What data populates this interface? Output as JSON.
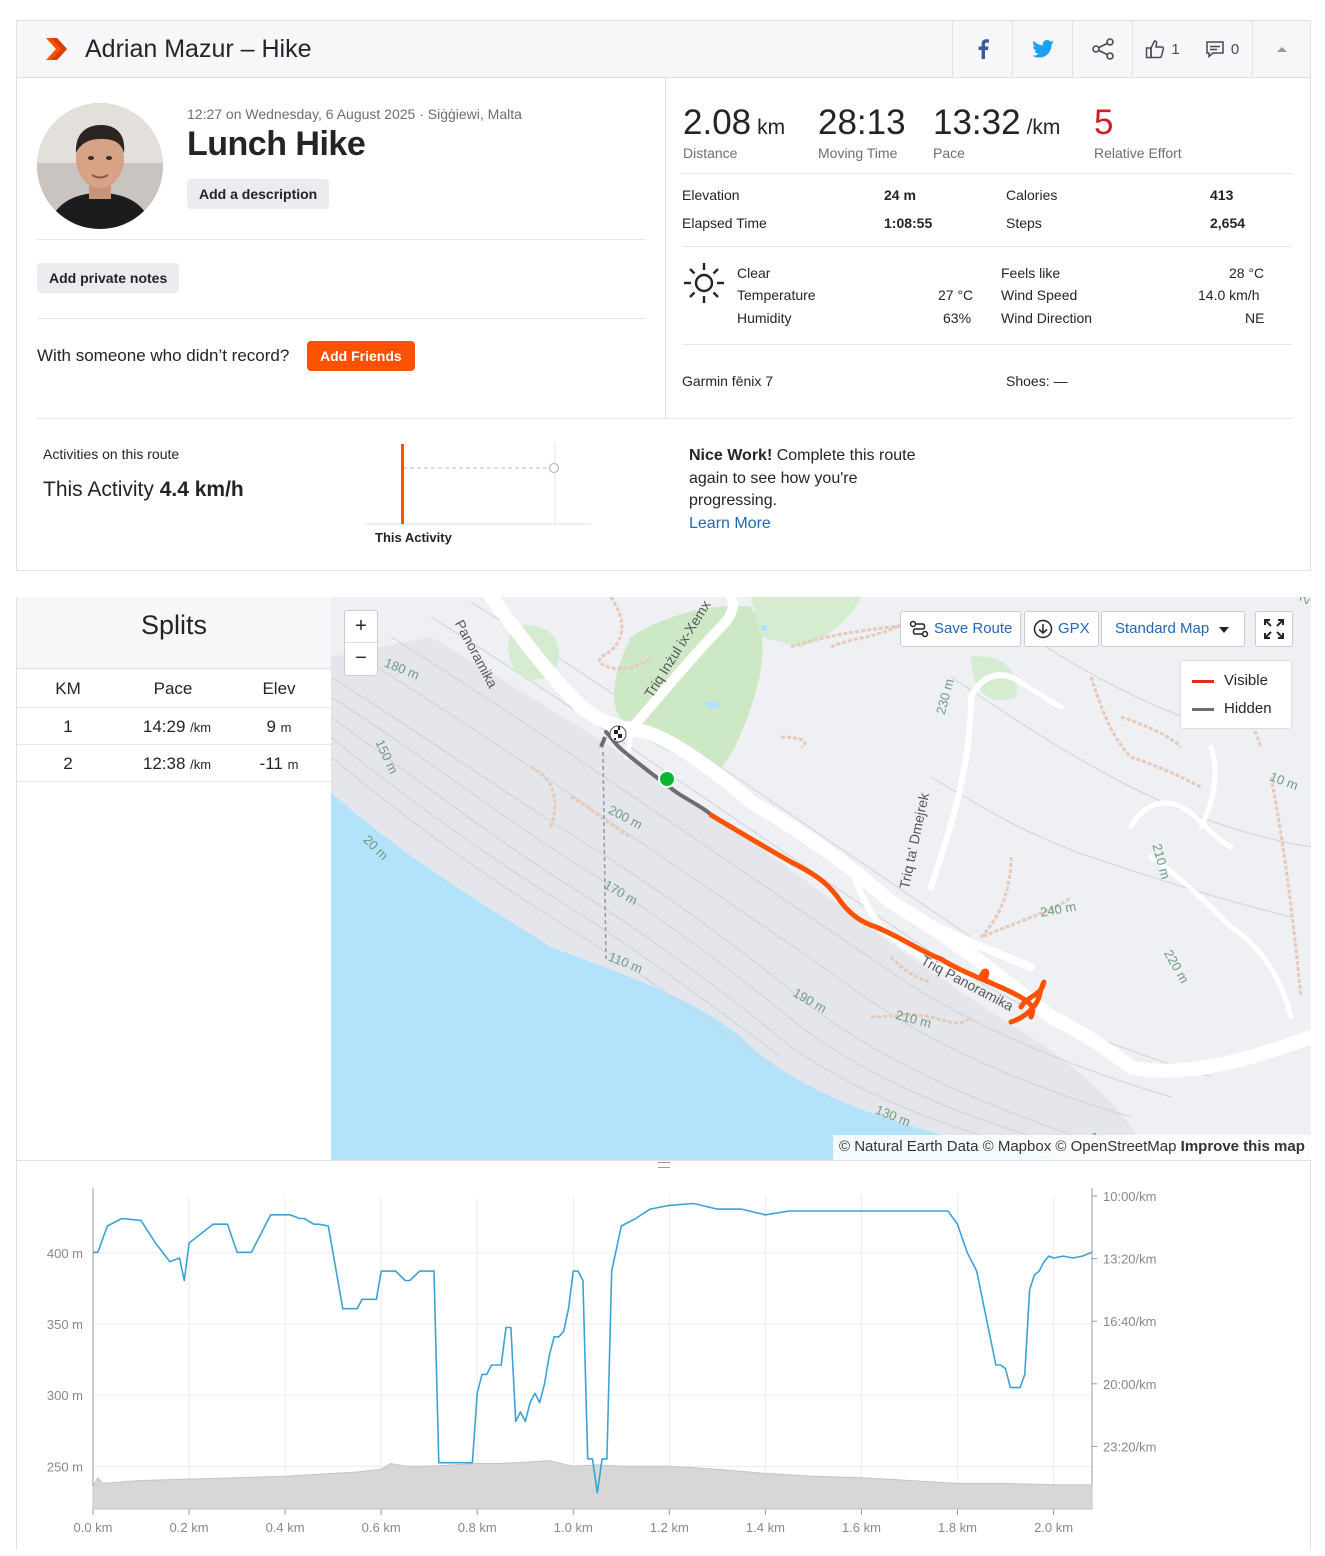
{
  "header": {
    "title": "Adrian Mazur – Hike",
    "likes_count": "1",
    "comments_count": "0"
  },
  "activity": {
    "meta": "12:27 on Wednesday, 6 August 2025 · Siġġiewi, Malta",
    "name": "Lunch Hike",
    "add_description": "Add a description",
    "add_private_notes": "Add private notes",
    "with_someone": "With someone who didn’t record?",
    "add_friends": "Add Friends"
  },
  "stats": {
    "distance": "2.08",
    "distance_unit": "km",
    "distance_label": "Distance",
    "moving_time": "28:13",
    "moving_time_label": "Moving Time",
    "pace": "13:32",
    "pace_unit": "/km",
    "pace_label": "Pace",
    "relative_effort": "5",
    "relative_effort_label": "Relative Effort",
    "elevation_label": "Elevation",
    "elevation": "24 m",
    "calories_label": "Calories",
    "calories": "413",
    "elapsed_label": "Elapsed Time",
    "elapsed": "1:08:55",
    "steps_label": "Steps",
    "steps": "2,654"
  },
  "weather": {
    "condition": "Clear",
    "temperature_label": "Temperature",
    "temperature": "27 °C",
    "humidity_label": "Humidity",
    "humidity": "63%",
    "feels_like_label": "Feels like",
    "feels_like": "28 °C",
    "wind_speed_label": "Wind Speed",
    "wind_speed": "14.0 km/h",
    "wind_direction_label": "Wind Direction",
    "wind_direction": "NE"
  },
  "gear": {
    "device": "Garmin fēnix 7",
    "shoes": "Shoes: —"
  },
  "route": {
    "title": "Activities on this route",
    "this_activity_label": "This Activity",
    "this_activity_speed": "4.4 km/h",
    "chart_label": "This Activity",
    "nice_work_bold": "Nice Work!",
    "nice_work_l1": " Complete this route",
    "nice_work_l2": "again to see how you're",
    "nice_work_l3": "progressing.",
    "learn_more": "Learn More"
  },
  "splits": {
    "title": "Splits",
    "headers": [
      "KM",
      "Pace",
      "Elev"
    ],
    "rows": [
      {
        "km": "1",
        "pace": "14:29",
        "pace_unit": "/km",
        "elev": "9",
        "elev_unit": "m"
      },
      {
        "km": "2",
        "pace": "12:38",
        "pace_unit": "/km",
        "elev": "-11",
        "elev_unit": "m"
      }
    ]
  },
  "map": {
    "zoom_in": "+",
    "zoom_out": "−",
    "save_route": "Save Route",
    "gpx": "GPX",
    "map_style": "Standard Map",
    "legend_visible": "Visible",
    "legend_hidden": "Hidden",
    "attribution": "© Natural Earth Data © Mapbox © OpenStreetMap",
    "improve": "Improve this map",
    "labels": {
      "road1": "Panoramika",
      "road2": "Triq Inżul ix-Xemx",
      "road3": "Triq ta' Dmejrek",
      "road4": "Triq Panoramika",
      "c180": "180 m",
      "c150": "150 m",
      "c20": "20 m",
      "c200": "200 m",
      "c170": "170 m",
      "c110": "110 m",
      "c190": "190 m",
      "c210a": "210 m",
      "c130": "130 m",
      "c230": "230 m",
      "c210b": "210 m",
      "c220": "220 m",
      "c240": "240 m",
      "c10": "10 m",
      "c20b": "20",
      "c19": "19"
    },
    "colors": {
      "visible": "#e8291c",
      "hidden": "#6d6d78",
      "track": "#fc5200"
    }
  },
  "chart_data": {
    "type": "line",
    "x_unit": "km",
    "x_ticks": [
      "0.0 km",
      "0.2 km",
      "0.4 km",
      "0.6 km",
      "0.8 km",
      "1.0 km",
      "1.2 km",
      "1.4 km",
      "1.6 km",
      "1.8 km",
      "2.0 km"
    ],
    "y_left_ticks": [
      "400 m",
      "350 m",
      "300 m",
      "250 m"
    ],
    "y_right_ticks": [
      "10:00/km",
      "13:20/km",
      "16:40/km",
      "20:00/km",
      "23:20/km"
    ],
    "xlim": [
      0,
      2.08
    ],
    "y_left_lim": [
      220,
      440
    ],
    "pace_series": {
      "name": "Pace",
      "color": "#3aa3d6",
      "y_range_min_per_km": [
        10,
        26.667
      ],
      "x": [
        0.0,
        0.01,
        0.03,
        0.06,
        0.1,
        0.13,
        0.16,
        0.18,
        0.19,
        0.2,
        0.21,
        0.25,
        0.28,
        0.3,
        0.33,
        0.37,
        0.39,
        0.41,
        0.43,
        0.44,
        0.46,
        0.47,
        0.49,
        0.52,
        0.55,
        0.56,
        0.57,
        0.58,
        0.59,
        0.6,
        0.61,
        0.62,
        0.63,
        0.65,
        0.66,
        0.68,
        0.7,
        0.71,
        0.72,
        0.725,
        0.74,
        0.75,
        0.77,
        0.78,
        0.79,
        0.8,
        0.81,
        0.82,
        0.83,
        0.84,
        0.85,
        0.86,
        0.87,
        0.88,
        0.89,
        0.9,
        0.91,
        0.92,
        0.93,
        0.94,
        0.95,
        0.96,
        0.97,
        0.98,
        0.99,
        1.0,
        1.01,
        1.02,
        1.03,
        1.04,
        1.05,
        1.06,
        1.07,
        1.08,
        1.1,
        1.13,
        1.16,
        1.2,
        1.25,
        1.3,
        1.35,
        1.4,
        1.45,
        1.5,
        1.55,
        1.6,
        1.65,
        1.7,
        1.75,
        1.78,
        1.8,
        1.82,
        1.84,
        1.86,
        1.88,
        1.89,
        1.9,
        1.91,
        1.92,
        1.93,
        1.94,
        1.95,
        1.96,
        1.97,
        1.98,
        1.99,
        2.0,
        2.02,
        2.04,
        2.06,
        2.08
      ],
      "y": [
        13.0,
        13.0,
        11.6,
        11.2,
        11.3,
        12.5,
        13.5,
        13.3,
        14.5,
        12.5,
        12.3,
        11.5,
        11.5,
        13.0,
        13.0,
        11.0,
        11.0,
        11.0,
        11.2,
        11.2,
        11.5,
        11.5,
        11.6,
        16.0,
        16.0,
        15.5,
        15.5,
        15.5,
        15.5,
        14.0,
        14.0,
        14.0,
        14.0,
        14.5,
        14.5,
        14.0,
        14.0,
        14.0,
        24.2,
        24.2,
        24.2,
        24.2,
        24.2,
        24.2,
        24.2,
        20.5,
        19.5,
        19.5,
        19.0,
        19.0,
        19.0,
        17.0,
        17.0,
        22.0,
        21.5,
        22.0,
        21.0,
        20.5,
        21.0,
        20.0,
        18.5,
        17.5,
        17.5,
        17.2,
        16.0,
        14.0,
        14.0,
        14.5,
        24.0,
        24.0,
        25.8,
        24.0,
        24.0,
        14.0,
        11.6,
        11.2,
        10.7,
        10.5,
        10.4,
        10.7,
        10.7,
        11.0,
        10.8,
        10.8,
        10.8,
        10.8,
        10.8,
        10.8,
        10.8,
        10.8,
        11.5,
        13.0,
        14.0,
        16.5,
        19.0,
        19.0,
        19.2,
        20.2,
        20.2,
        20.2,
        19.5,
        15.0,
        14.2,
        14.0,
        13.5,
        13.2,
        13.3,
        13.2,
        13.3,
        13.2,
        13.0
      ]
    },
    "elevation_series": {
      "name": "Elevation",
      "color": "#d7d7d7",
      "x": [
        0.0,
        0.01,
        0.02,
        0.1,
        0.2,
        0.3,
        0.4,
        0.5,
        0.55,
        0.6,
        0.62,
        0.65,
        0.7,
        0.75,
        0.8,
        0.85,
        0.9,
        0.95,
        1.0,
        1.05,
        1.1,
        1.15,
        1.2,
        1.3,
        1.4,
        1.5,
        1.6,
        1.7,
        1.8,
        1.9,
        2.0,
        2.08
      ],
      "y": [
        236,
        242,
        238,
        240,
        241,
        242,
        243,
        245,
        246,
        248,
        252,
        250,
        250,
        251,
        252,
        252,
        253,
        254,
        250,
        251,
        250,
        250,
        250,
        248,
        245,
        243,
        242,
        240,
        238,
        238,
        237,
        237
      ]
    }
  }
}
